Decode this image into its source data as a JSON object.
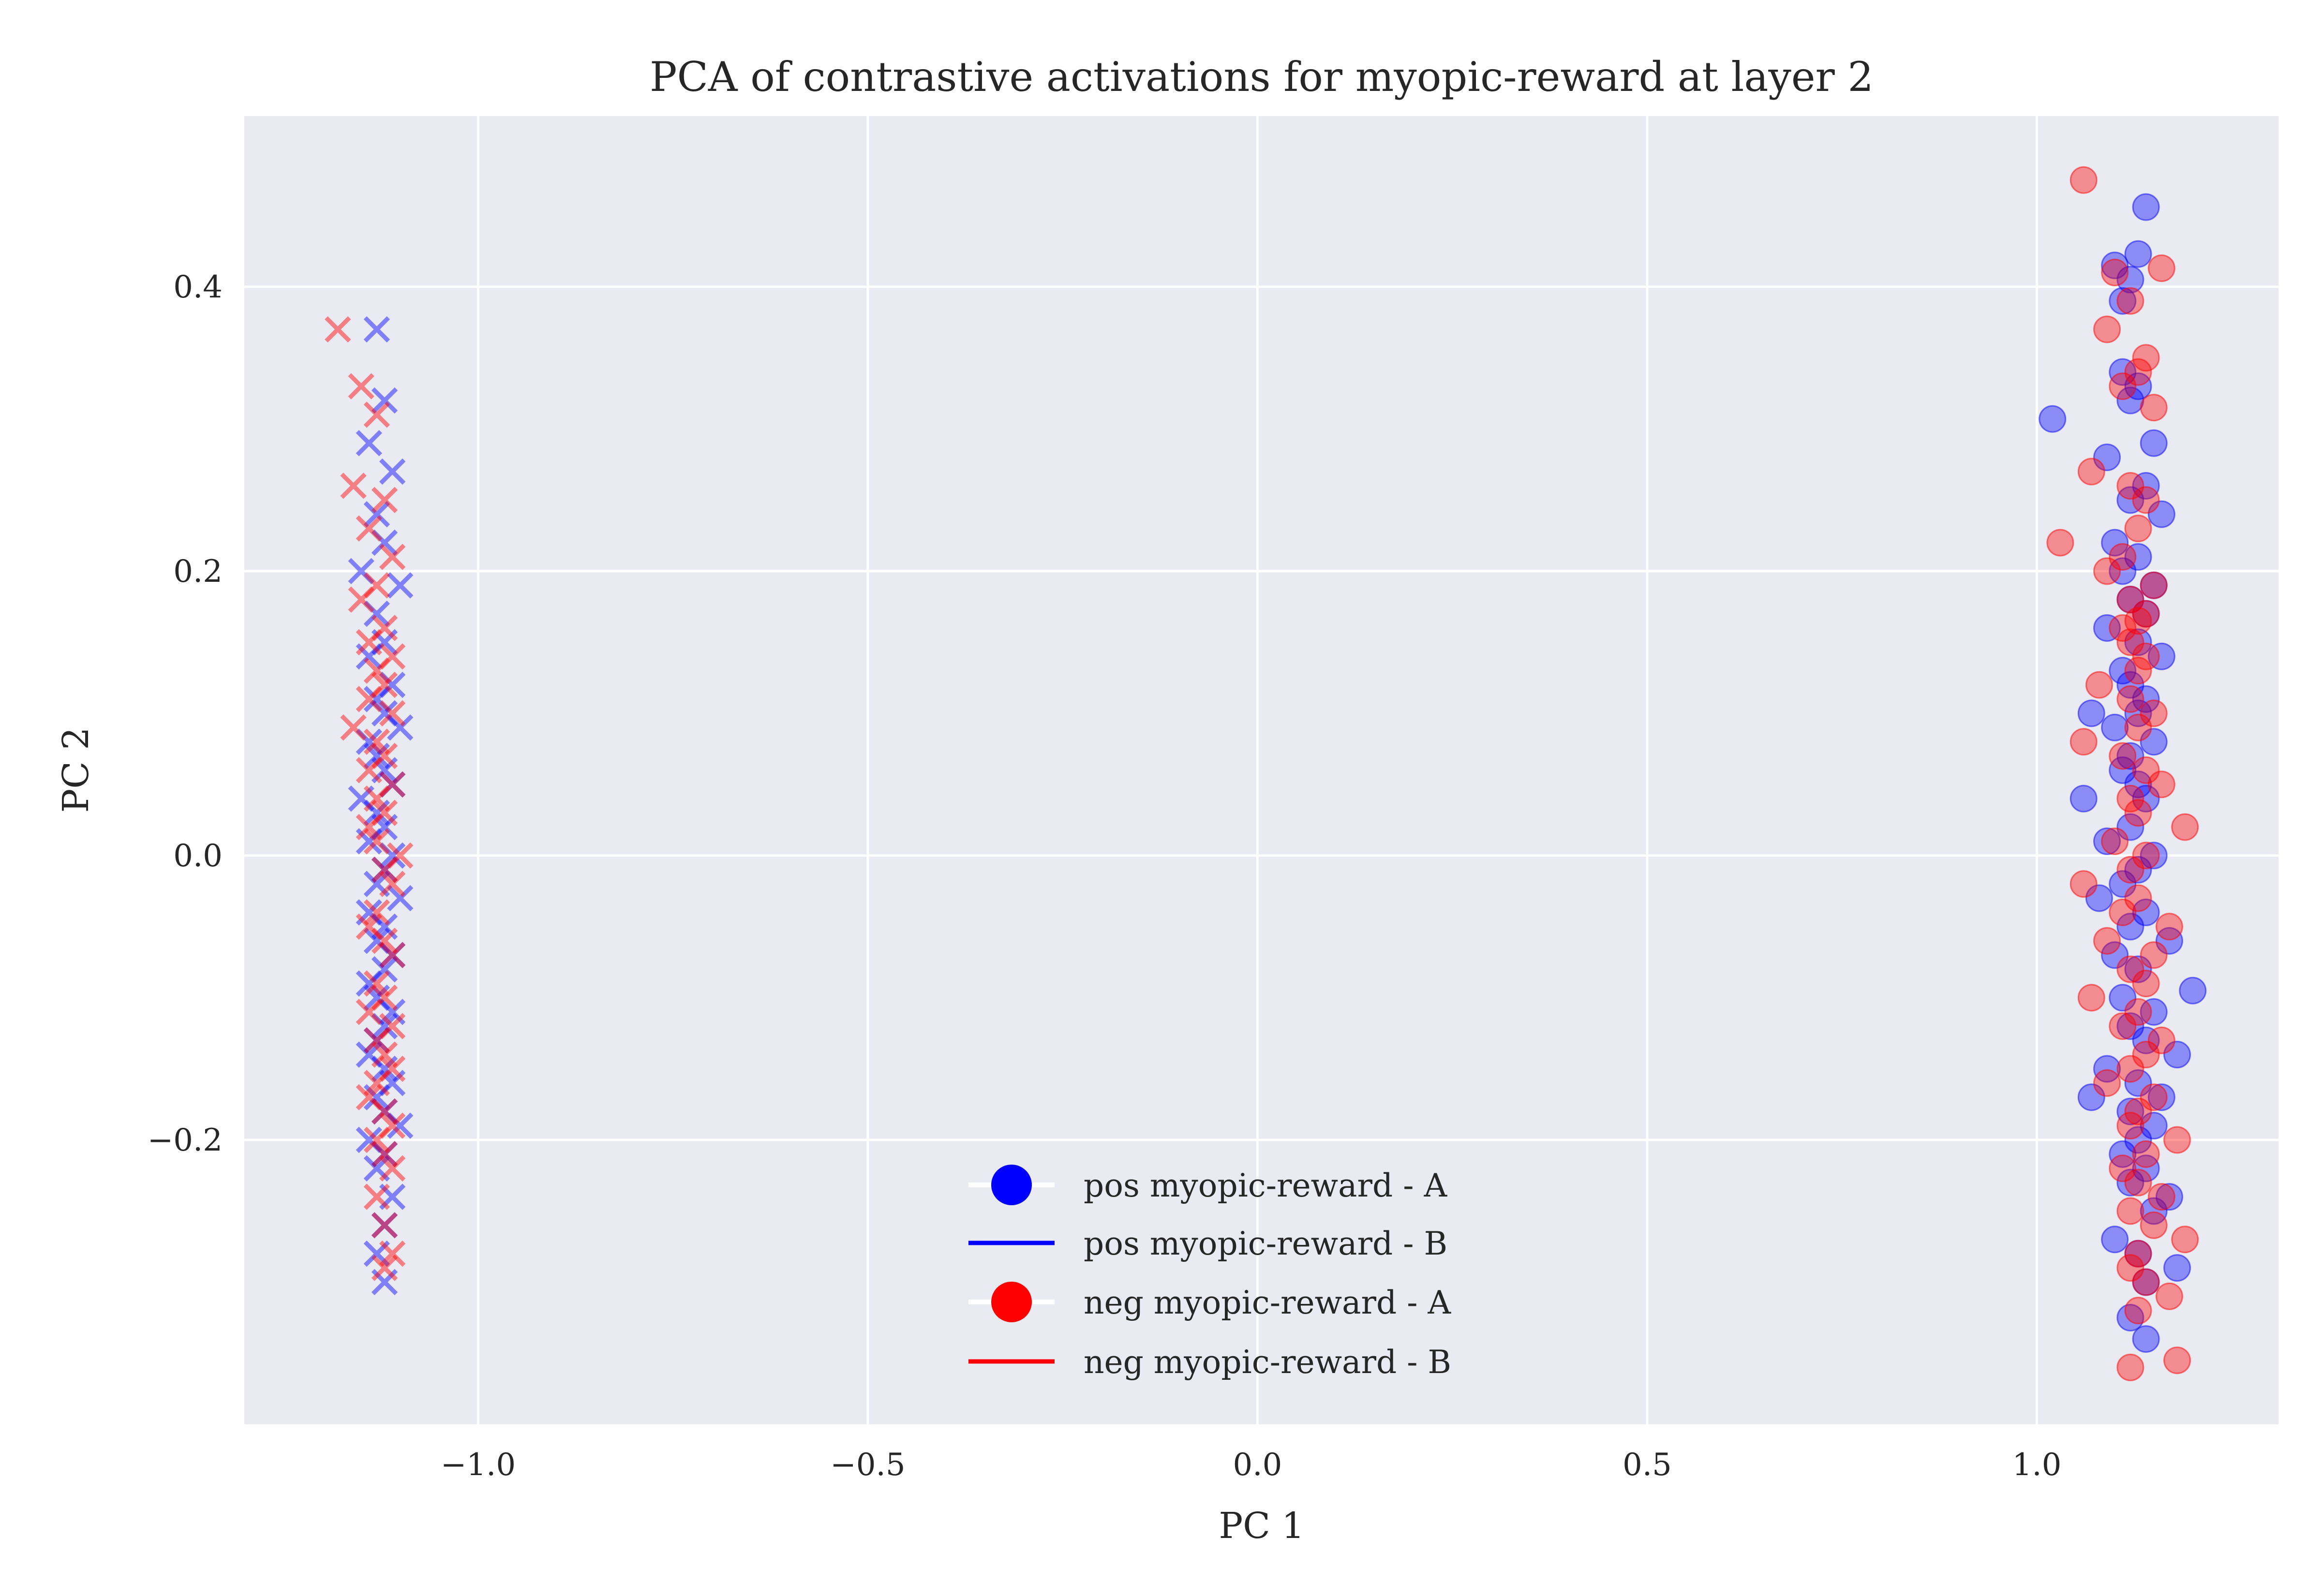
{
  "chart_data": {
    "type": "scatter",
    "title": "PCA of contrastive activations for myopic-reward at layer 2",
    "xlabel": "PC 1",
    "ylabel": "PC 2",
    "xlim": [
      -1.3,
      1.31
    ],
    "ylim": [
      -0.4,
      0.52
    ],
    "xticks": [
      -1.0,
      -0.5,
      0.0,
      0.5,
      1.0
    ],
    "xtick_labels": [
      "−1.0",
      "−0.5",
      "0.0",
      "0.5",
      "1.0"
    ],
    "yticks": [
      -0.2,
      0.0,
      0.2,
      0.4
    ],
    "ytick_labels": [
      "−0.2",
      "0.0",
      "0.2",
      "0.4"
    ],
    "grid": true,
    "legend_position": "lower-center",
    "colors": {
      "pos": "#0000ff",
      "neg": "#ff0000",
      "background": "#eaeaf2",
      "grid": "#ffffff"
    },
    "legend": [
      {
        "label": "pos myopic-reward - A",
        "color": "#0000ff",
        "style": "marker"
      },
      {
        "label": "pos myopic-reward - B",
        "color": "#0000ff",
        "style": "line"
      },
      {
        "label": "neg myopic-reward - A",
        "color": "#ff0000",
        "style": "marker"
      },
      {
        "label": "neg myopic-reward - B",
        "color": "#ff0000",
        "style": "line"
      }
    ],
    "series": [
      {
        "group": "pos",
        "marker": "x",
        "color": "#0000ff",
        "x": [
          -1.13,
          -1.12,
          -1.14,
          -1.11,
          -1.13,
          -1.12,
          -1.15,
          -1.1,
          -1.13,
          -1.12,
          -1.14,
          -1.11,
          -1.13,
          -1.12,
          -1.1,
          -1.14,
          -1.13,
          -1.12,
          -1.11,
          -1.15,
          -1.13,
          -1.12,
          -1.14,
          -1.11,
          -1.12,
          -1.13,
          -1.1,
          -1.14,
          -1.12,
          -1.13,
          -1.11,
          -1.12,
          -1.14,
          -1.13,
          -1.11,
          -1.12,
          -1.13,
          -1.14,
          -1.12,
          -1.11,
          -1.13,
          -1.12,
          -1.1,
          -1.14,
          -1.12,
          -1.13,
          -1.11,
          -1.12,
          -1.13,
          -1.12
        ],
        "y": [
          0.37,
          0.32,
          0.29,
          0.27,
          0.24,
          0.22,
          0.2,
          0.19,
          0.17,
          0.15,
          0.14,
          0.12,
          0.11,
          0.1,
          0.09,
          0.08,
          0.07,
          0.06,
          0.05,
          0.04,
          0.03,
          0.02,
          0.01,
          0.0,
          -0.01,
          -0.02,
          -0.03,
          -0.04,
          -0.05,
          -0.06,
          -0.07,
          -0.08,
          -0.09,
          -0.1,
          -0.11,
          -0.12,
          -0.13,
          -0.14,
          -0.15,
          -0.16,
          -0.17,
          -0.18,
          -0.19,
          -0.2,
          -0.21,
          -0.22,
          -0.24,
          -0.26,
          -0.28,
          -0.3
        ]
      },
      {
        "group": "neg",
        "marker": "x",
        "color": "#ff0000",
        "x": [
          -1.18,
          -1.15,
          -1.13,
          -1.16,
          -1.12,
          -1.14,
          -1.11,
          -1.13,
          -1.15,
          -1.12,
          -1.14,
          -1.11,
          -1.13,
          -1.12,
          -1.14,
          -1.11,
          -1.16,
          -1.13,
          -1.12,
          -1.14,
          -1.11,
          -1.13,
          -1.12,
          -1.1,
          -1.14,
          -1.13,
          -1.12,
          -1.11,
          -1.13,
          -1.14,
          -1.12,
          -1.11,
          -1.13,
          -1.12,
          -1.14,
          -1.11,
          -1.13,
          -1.12,
          -1.11,
          -1.13,
          -1.14,
          -1.12,
          -1.11,
          -1.13,
          -1.12,
          -1.11,
          -1.13,
          -1.12,
          -1.11,
          -1.12
        ],
        "y": [
          0.37,
          0.33,
          0.31,
          0.26,
          0.25,
          0.23,
          0.21,
          0.19,
          0.18,
          0.16,
          0.15,
          0.14,
          0.13,
          0.12,
          0.11,
          0.1,
          0.09,
          0.08,
          0.07,
          0.06,
          0.05,
          0.04,
          0.03,
          0.0,
          0.02,
          0.01,
          -0.01,
          -0.02,
          -0.04,
          -0.05,
          -0.06,
          -0.07,
          -0.09,
          -0.1,
          -0.11,
          -0.12,
          -0.13,
          -0.14,
          -0.15,
          -0.16,
          -0.17,
          -0.18,
          -0.19,
          -0.2,
          -0.21,
          -0.22,
          -0.24,
          -0.26,
          -0.28,
          -0.29
        ]
      },
      {
        "group": "pos",
        "marker": "o",
        "color": "#0000ff",
        "x": [
          1.14,
          1.13,
          1.1,
          1.12,
          1.11,
          1.02,
          1.13,
          1.12,
          1.11,
          1.15,
          1.09,
          1.14,
          1.12,
          1.16,
          1.1,
          1.13,
          1.11,
          1.15,
          1.12,
          1.14,
          1.09,
          1.13,
          1.16,
          1.11,
          1.12,
          1.14,
          1.13,
          1.07,
          1.1,
          1.15,
          1.12,
          1.11,
          1.13,
          1.14,
          1.06,
          1.12,
          1.09,
          1.15,
          1.13,
          1.11,
          1.08,
          1.14,
          1.12,
          1.17,
          1.1,
          1.13,
          1.2,
          1.11,
          1.15,
          1.12,
          1.18,
          1.14,
          1.09,
          1.13,
          1.16,
          1.12,
          1.15,
          1.07,
          1.13,
          1.11,
          1.14,
          1.17,
          1.12,
          1.15,
          1.1,
          1.13,
          1.14,
          1.12,
          1.18,
          1.14
        ],
        "y": [
          0.456,
          0.423,
          0.415,
          0.405,
          0.39,
          0.307,
          0.33,
          0.32,
          0.34,
          0.29,
          0.28,
          0.26,
          0.25,
          0.24,
          0.22,
          0.21,
          0.2,
          0.19,
          0.18,
          0.17,
          0.16,
          0.15,
          0.14,
          0.13,
          0.12,
          0.11,
          0.1,
          0.1,
          0.09,
          0.08,
          0.07,
          0.06,
          0.05,
          0.04,
          0.04,
          0.02,
          0.01,
          0.0,
          -0.01,
          -0.02,
          -0.03,
          -0.04,
          -0.05,
          -0.06,
          -0.07,
          -0.08,
          -0.095,
          -0.1,
          -0.11,
          -0.12,
          -0.14,
          -0.13,
          -0.15,
          -0.16,
          -0.17,
          -0.18,
          -0.19,
          -0.17,
          -0.2,
          -0.21,
          -0.22,
          -0.24,
          -0.23,
          -0.25,
          -0.27,
          -0.28,
          -0.3,
          -0.325,
          -0.29,
          -0.34
        ]
      },
      {
        "group": "neg",
        "marker": "o",
        "color": "#ff0000",
        "x": [
          1.06,
          1.16,
          1.1,
          1.12,
          1.09,
          1.14,
          1.13,
          1.11,
          1.15,
          1.07,
          1.12,
          1.14,
          1.03,
          1.13,
          1.11,
          1.09,
          1.15,
          1.12,
          1.14,
          1.13,
          1.11,
          1.12,
          1.14,
          1.13,
          1.08,
          1.12,
          1.15,
          1.13,
          1.06,
          1.11,
          1.14,
          1.16,
          1.12,
          1.13,
          1.19,
          1.1,
          1.14,
          1.12,
          1.06,
          1.13,
          1.11,
          1.17,
          1.09,
          1.15,
          1.12,
          1.14,
          1.07,
          1.13,
          1.11,
          1.16,
          1.14,
          1.12,
          1.09,
          1.15,
          1.13,
          1.18,
          1.12,
          1.14,
          1.11,
          1.13,
          1.16,
          1.12,
          1.19,
          1.15,
          1.13,
          1.12,
          1.14,
          1.17,
          1.13,
          1.18,
          1.12
        ],
        "y": [
          0.475,
          0.413,
          0.41,
          0.39,
          0.37,
          0.35,
          0.34,
          0.33,
          0.315,
          0.27,
          0.26,
          0.25,
          0.22,
          0.23,
          0.21,
          0.2,
          0.19,
          0.18,
          0.17,
          0.165,
          0.16,
          0.15,
          0.14,
          0.13,
          0.12,
          0.11,
          0.1,
          0.09,
          0.08,
          0.07,
          0.06,
          0.05,
          0.04,
          0.03,
          0.02,
          0.01,
          0.0,
          -0.01,
          -0.02,
          -0.03,
          -0.04,
          -0.05,
          -0.06,
          -0.07,
          -0.08,
          -0.09,
          -0.1,
          -0.11,
          -0.12,
          -0.13,
          -0.14,
          -0.15,
          -0.16,
          -0.17,
          -0.18,
          -0.2,
          -0.19,
          -0.21,
          -0.22,
          -0.23,
          -0.24,
          -0.25,
          -0.27,
          -0.26,
          -0.28,
          -0.29,
          -0.3,
          -0.31,
          -0.32,
          -0.355,
          -0.36
        ]
      }
    ]
  }
}
